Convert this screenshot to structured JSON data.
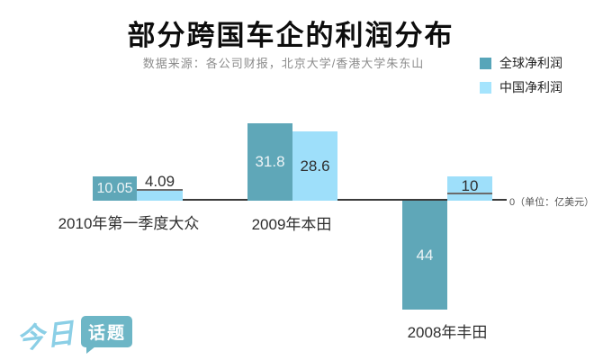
{
  "header": {
    "title": "部分跨国车企的利润分布",
    "subtitle": "数据来源：各公司财报，北京大学/香港大学朱东山"
  },
  "legend": {
    "position": "top-right",
    "items": [
      {
        "label": "全球净利润",
        "color": "#57a5b9"
      },
      {
        "label": "中国净利润",
        "color": "#a5e4fd"
      }
    ]
  },
  "chart_data": {
    "type": "bar",
    "title": "部分跨国车企的利润分布",
    "unit": "亿美元",
    "axis_zero_label": "0（单位：亿美元）",
    "baseline": 0,
    "ylim": [
      -44,
      31.8
    ],
    "grid": false,
    "legend_position": "top-right",
    "categories": [
      "2010年第一季度大众",
      "2009年本田",
      "2008年丰田"
    ],
    "series": [
      {
        "name": "全球净利润",
        "color": "#5fa7b8",
        "values": [
          10.05,
          31.8,
          -44
        ]
      },
      {
        "name": "中国净利润",
        "color": "#9edffa",
        "values": [
          4.09,
          28.6,
          10
        ]
      }
    ],
    "groups": [
      {
        "category": "2010年第一季度大众",
        "global_label": "10.05",
        "china_label": "4.09"
      },
      {
        "category": "2009年本田",
        "global_label": "31.8",
        "china_label": "28.6"
      },
      {
        "category": "2008年丰田",
        "global_label": "44",
        "china_label": "10"
      }
    ]
  },
  "logo": {
    "text_script": "今日",
    "text_bubble": "话题"
  }
}
